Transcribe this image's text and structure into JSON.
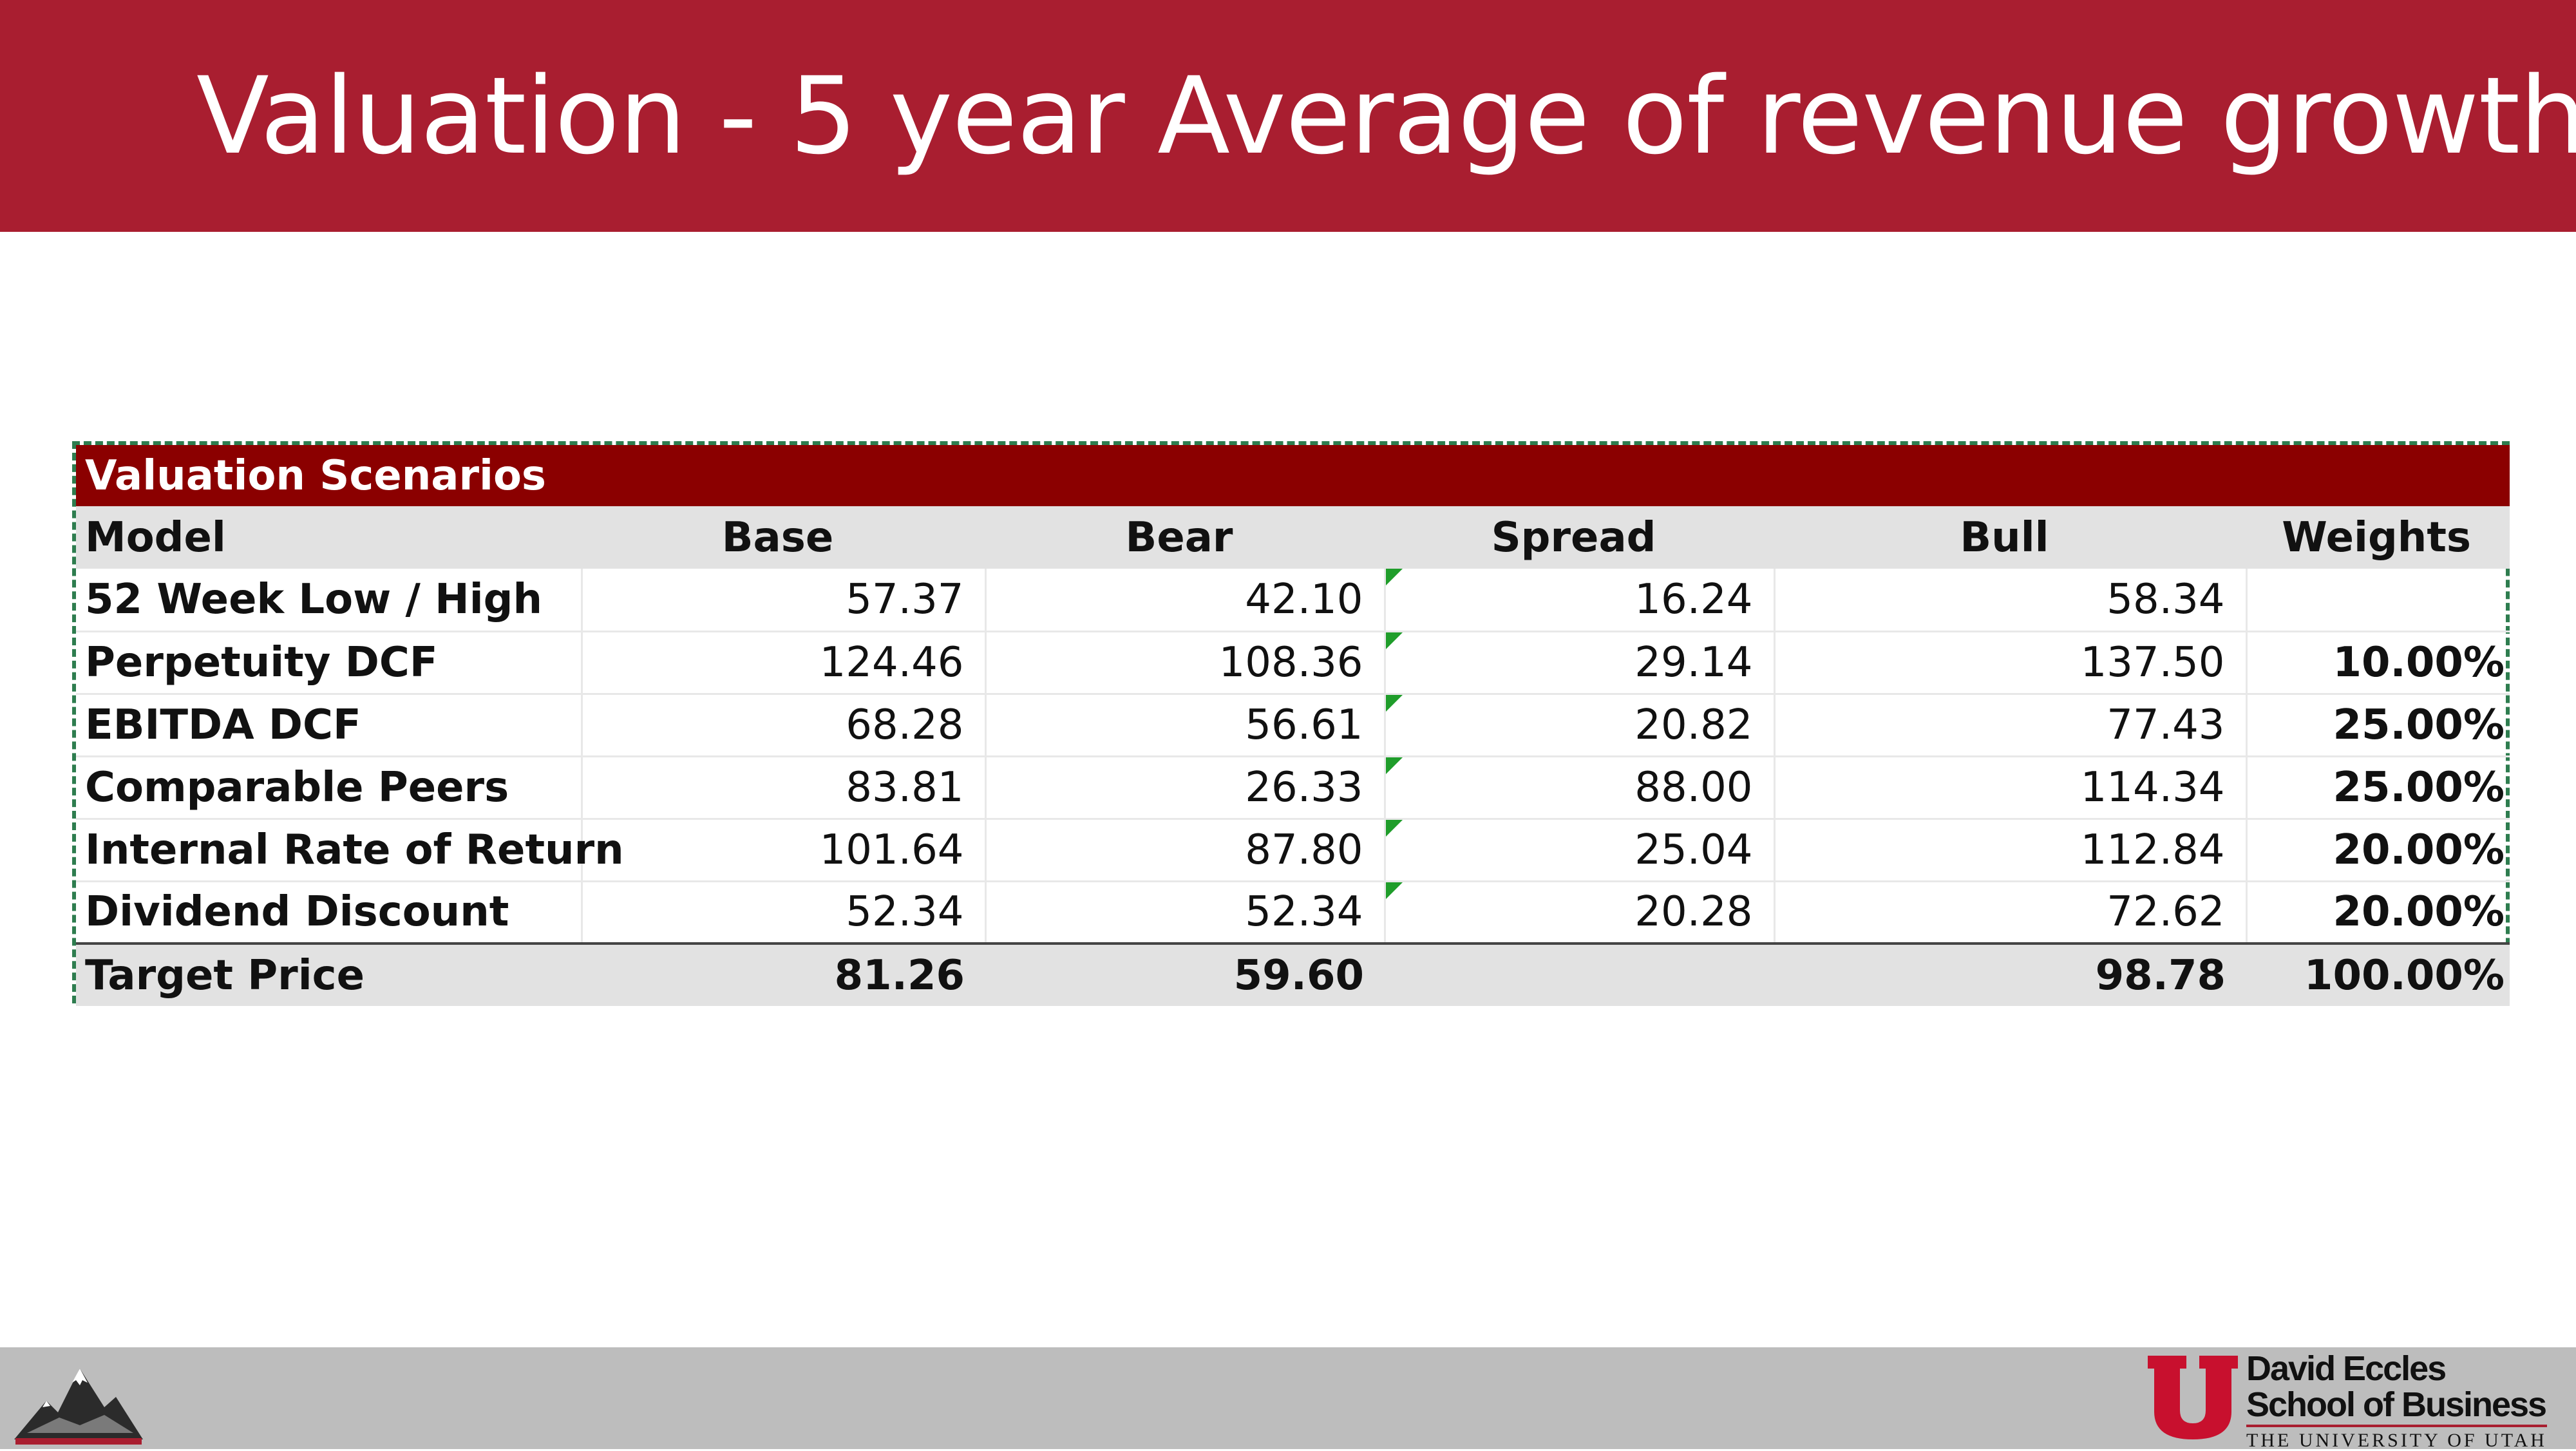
{
  "slide": {
    "title": "Valuation - 5 year Average of revenue growth"
  },
  "table": {
    "title": "Valuation Scenarios",
    "headers": [
      "Model",
      "Base",
      "Bear",
      "Spread",
      "Bull",
      "Weights"
    ],
    "rows": [
      {
        "model": "52 Week Low / High",
        "base": "57.37",
        "bear": "42.10",
        "spread": "16.24",
        "bull": "58.34",
        "weight": ""
      },
      {
        "model": "Perpetuity DCF",
        "base": "124.46",
        "bear": "108.36",
        "spread": "29.14",
        "bull": "137.50",
        "weight": "10.00%"
      },
      {
        "model": "EBITDA DCF",
        "base": "68.28",
        "bear": "56.61",
        "spread": "20.82",
        "bull": "77.43",
        "weight": "25.00%"
      },
      {
        "model": "Comparable Peers",
        "base": "83.81",
        "bear": "26.33",
        "spread": "88.00",
        "bull": "114.34",
        "weight": "25.00%"
      },
      {
        "model": "Internal Rate of Return",
        "base": "101.64",
        "bear": "87.80",
        "spread": "25.04",
        "bull": "112.84",
        "weight": "20.00%"
      },
      {
        "model": "Dividend Discount",
        "base": "52.34",
        "bear": "52.34",
        "spread": "20.28",
        "bull": "72.62",
        "weight": "20.00%"
      }
    ],
    "total": {
      "model": "Target Price",
      "base": "81.26",
      "bear": "59.60",
      "spread": "",
      "bull": "98.78",
      "weight": "100.00%"
    }
  },
  "footer": {
    "school_line1": "David Eccles",
    "school_line2": "School of Business",
    "school_line3": "THE UNIVERSITY OF UTAH",
    "left_logo_icon": "mountain-logo-icon",
    "right_logo_icon": "block-u-logo-icon"
  },
  "colors": {
    "header_band": "#a91e30",
    "table_title_bg": "#8b0000",
    "header_row_bg": "#e2e2e2",
    "dashed_border": "#2e7d4f",
    "error_marker": "#1f9d2a",
    "footer_band": "#bdbdbd"
  }
}
